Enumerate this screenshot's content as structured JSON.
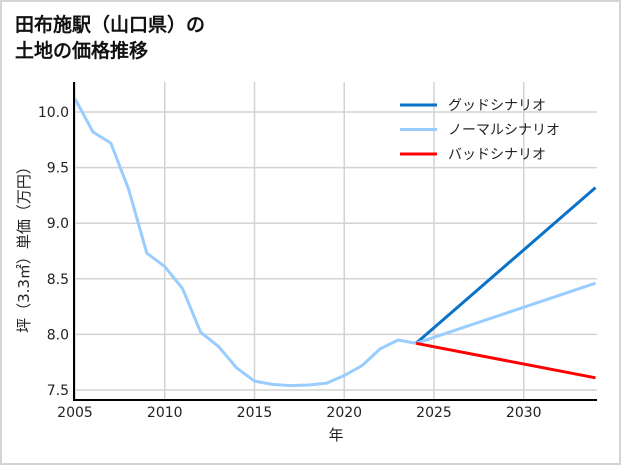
{
  "title": {
    "line1": "田布施駅（山口県）の",
    "line2": "土地の価格推移"
  },
  "colors": {
    "good": "#0a72c9",
    "normal": "#99ccff",
    "bad": "#ff0000",
    "grid": "#d3d3d3",
    "axis": "#000000"
  },
  "chart_data": {
    "type": "line",
    "title": "田布施駅（山口県）の土地の価格推移",
    "xlabel": "年",
    "ylabel": "坪（3.3㎡）単価（万円）",
    "xlim": [
      2005,
      2034
    ],
    "ylim": [
      7.42,
      10.25
    ],
    "xticks": [
      2005,
      2010,
      2015,
      2020,
      2025,
      2030
    ],
    "yticks": [
      7.5,
      8.0,
      8.5,
      9.0,
      9.5,
      10.0
    ],
    "ytick_labels": [
      "7.5",
      "8.0",
      "8.5",
      "9.0",
      "9.5",
      "10.0"
    ],
    "grid": true,
    "legend_position": "upper right",
    "series": [
      {
        "name": "ノーマルシナリオ",
        "key": "history",
        "x": [
          2005,
          2006,
          2007,
          2008,
          2009,
          2010,
          2011,
          2012,
          2013,
          2014,
          2015,
          2016,
          2017,
          2018,
          2019,
          2020,
          2021,
          2022,
          2023,
          2024
        ],
        "values": [
          10.12,
          9.82,
          9.72,
          9.3,
          8.73,
          8.61,
          8.41,
          8.02,
          7.89,
          7.7,
          7.58,
          7.55,
          7.54,
          7.545,
          7.56,
          7.63,
          7.72,
          7.87,
          7.95,
          7.92
        ]
      },
      {
        "name": "グッドシナリオ",
        "key": "good",
        "x": [
          2024,
          2034
        ],
        "values": [
          7.92,
          9.32
        ]
      },
      {
        "name": "ノーマルシナリオ",
        "key": "normal",
        "x": [
          2024,
          2034
        ],
        "values": [
          7.92,
          8.46
        ]
      },
      {
        "name": "バッドシナリオ",
        "key": "bad",
        "x": [
          2024,
          2034
        ],
        "values": [
          7.92,
          7.61
        ]
      }
    ],
    "legend": [
      {
        "label": "グッドシナリオ",
        "color": "#0a72c9"
      },
      {
        "label": "ノーマルシナリオ",
        "color": "#99ccff"
      },
      {
        "label": "バッドシナリオ",
        "color": "#ff0000"
      }
    ]
  }
}
